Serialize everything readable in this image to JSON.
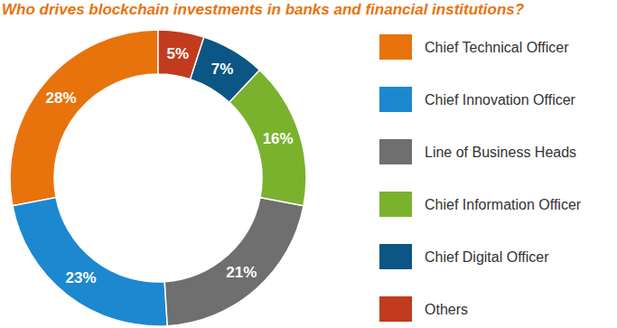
{
  "chart_data": {
    "type": "pie",
    "title": "Who drives blockchain investments in banks and financial institutions?",
    "categories": [
      "Chief Technical Officer",
      "Chief Innovation Officer",
      "Line of Business Heads",
      "Chief Information Officer",
      "Chief Digital Officer",
      "Others"
    ],
    "values": [
      28,
      23,
      21,
      16,
      7,
      5
    ],
    "value_labels": [
      "28%",
      "23%",
      "21%",
      "16%",
      "7%",
      "5%"
    ],
    "colors": [
      "#e8730c",
      "#1c88d0",
      "#6f6f6f",
      "#7ab22e",
      "#0b5684",
      "#c23b1e"
    ],
    "data_labels": true,
    "legend": "right"
  }
}
